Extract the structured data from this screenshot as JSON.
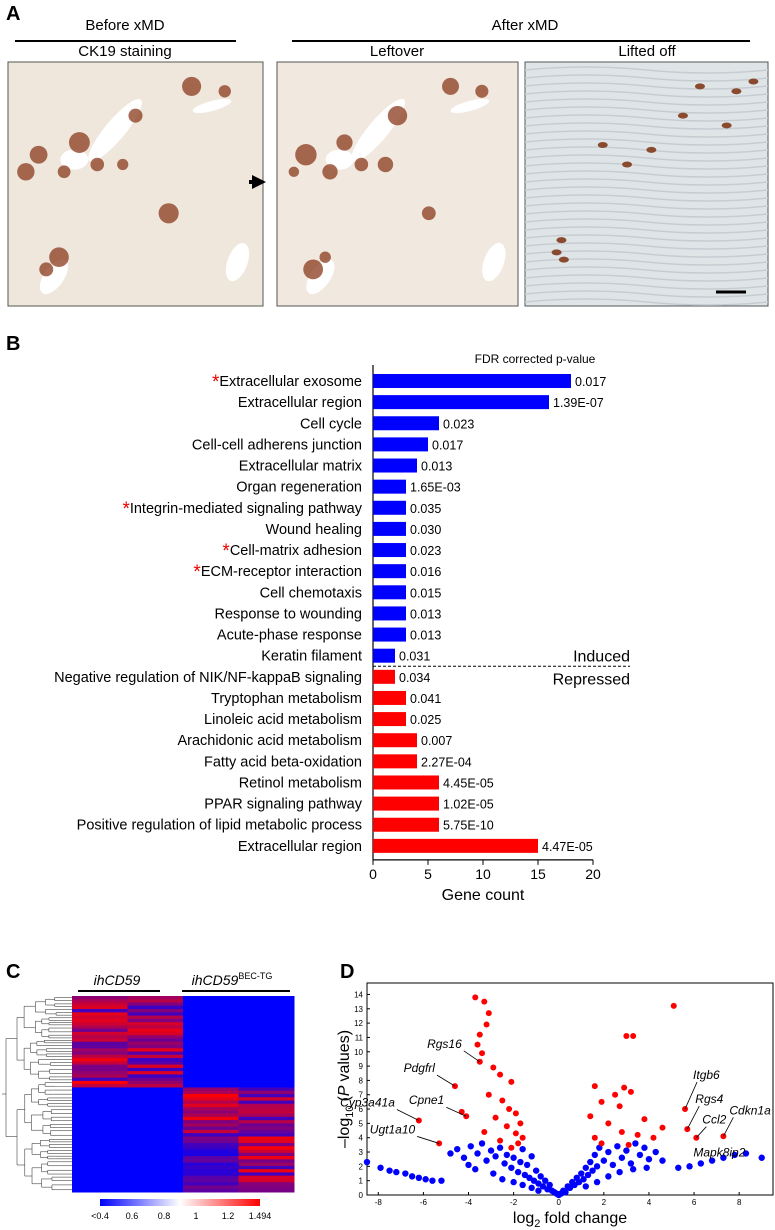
{
  "figure": {
    "panel_a": {
      "label": "A",
      "before": "Before xMD",
      "before_sub": "CK19 staining",
      "after": "After xMD",
      "after_sub1": "Leftover",
      "after_sub2": "Lifted off"
    },
    "panel_c": {
      "label": "C",
      "col1": "ihCD59",
      "col2": [
        "ihCD59",
        "BEC-TG"
      ],
      "colorbar": [
        "<0.4",
        "0.6",
        "0.8",
        "1",
        "1.2",
        "1.494"
      ]
    }
  },
  "chart_data": [
    {
      "type": "bar",
      "orientation": "horizontal",
      "panel_label": "B",
      "categories": [
        "*Extracellular exosome",
        "Extracellular region",
        "Cell cycle",
        "Cell-cell adherens junction",
        "Extracellular matrix",
        "Organ regeneration",
        "*Integrin-mediated signaling pathway",
        "Wound healing",
        "*Cell-matrix adhesion",
        "*ECM-receptor interaction",
        "Cell chemotaxis",
        "Response to wounding",
        "Acute-phase response",
        "Keratin filament",
        "Negative regulation of NIK/NF-kappaB signaling",
        "Tryptophan metabolism",
        "Linoleic acid metabolism",
        "Arachidonic acid metabolism",
        "Fatty acid beta-oxidation",
        "Retinol metabolism",
        "PPAR signaling pathway",
        "Positive regulation of lipid metabolic process",
        "Extracellular region"
      ],
      "series": [
        {
          "name": "Induced",
          "color": "#0000ff",
          "values": [
            18,
            16,
            6,
            5,
            4,
            3,
            3,
            3,
            3,
            3,
            3,
            3,
            3,
            2,
            null,
            null,
            null,
            null,
            null,
            null,
            null,
            null,
            null
          ]
        },
        {
          "name": "Repressed",
          "color": "#ff0000",
          "values": [
            null,
            null,
            null,
            null,
            null,
            null,
            null,
            null,
            null,
            null,
            null,
            null,
            null,
            null,
            2,
            3,
            3,
            4,
            4,
            6,
            6,
            6,
            15
          ]
        }
      ],
      "annotation_title": "FDR corrected p-value",
      "p_values": [
        "0.017",
        "1.39E-07",
        "0.023",
        "0.017",
        "0.013",
        "1.65E-03",
        "0.035",
        "0.030",
        "0.023",
        "0.016",
        "0.015",
        "0.013",
        "0.013",
        "0.031",
        "0.034",
        "0.041",
        "0.025",
        "0.007",
        "2.27E-04",
        "4.45E-05",
        "1.02E-05",
        "5.75E-10",
        "4.47E-05"
      ],
      "xlim": [
        0,
        20
      ],
      "xticks": [
        0,
        5,
        10,
        15,
        20
      ],
      "x_label": "Gene count"
    },
    {
      "type": "scatter",
      "panel_label": "D",
      "series": [
        {
          "color": "#0000ff",
          "x": [
            -8.5,
            -7.9,
            -7.5,
            -7.2,
            -6.8,
            -6.5,
            -6.2,
            -5.9,
            -5.6,
            -5.2,
            -4.8,
            -4.5,
            -4.2,
            -3.9,
            -3.6,
            -3.4,
            -3.2,
            -3.0,
            -2.8,
            -2.6,
            -2.4,
            -2.3,
            -2.1,
            -2.0,
            -1.8,
            -1.7,
            -1.6,
            -1.5,
            -1.4,
            -1.3,
            -1.2,
            -1.1,
            -1.0,
            -0.9,
            -0.8,
            -0.7,
            -0.6,
            -0.5,
            -0.4,
            -0.3,
            -0.2,
            -0.1,
            -3.7,
            -2.9,
            -2.5,
            -2.0,
            -1.6,
            -1.2,
            -0.9,
            -4.0,
            0,
            0.1,
            0.2,
            0.3,
            0.4,
            0.5,
            0.6,
            0.7,
            0.8,
            0.9,
            1.0,
            1.1,
            1.2,
            1.3,
            1.4,
            1.5,
            1.6,
            1.7,
            1.8,
            2.0,
            2.2,
            2.4,
            2.6,
            2.8,
            3.0,
            3.2,
            3.4,
            3.6,
            3.8,
            4.0,
            4.3,
            4.6,
            1.2,
            1.7,
            2.2,
            2.7,
            3.3,
            3.9,
            5.3,
            5.8,
            6.3,
            6.8,
            7.3,
            7.8,
            8.3,
            9.0
          ],
          "values": [
            2.3,
            1.9,
            1.7,
            1.6,
            1.5,
            1.3,
            1.2,
            1.1,
            1.0,
            1.0,
            2.9,
            3.2,
            2.6,
            3.4,
            2.9,
            3.6,
            2.4,
            3.1,
            2.7,
            3.3,
            2.2,
            2.8,
            1.9,
            2.6,
            1.6,
            2.3,
            3.2,
            1.4,
            2.1,
            1.2,
            2.7,
            1.0,
            1.7,
            0.8,
            1.3,
            0.6,
            1.0,
            0.4,
            0.7,
            0.3,
            0.2,
            0.1,
            1.8,
            1.5,
            1.1,
            0.9,
            0.7,
            0.5,
            0.3,
            2.1,
            0,
            0.1,
            0.3,
            0.2,
            0.6,
            0.5,
            0.9,
            0.7,
            1.2,
            0.9,
            1.5,
            1.1,
            1.9,
            1.4,
            2.3,
            1.7,
            2.8,
            2.0,
            3.3,
            2.4,
            3.0,
            2.1,
            3.4,
            2.6,
            3.1,
            2.2,
            3.6,
            2.8,
            3.3,
            2.5,
            3.0,
            2.4,
            0.6,
            0.9,
            1.3,
            1.6,
            1.8,
            1.9,
            1.9,
            2.0,
            2.2,
            2.4,
            2.6,
            2.8,
            2.9,
            2.6
          ]
        },
        {
          "color": "#ff0000",
          "x": [
            -3.7,
            -3.3,
            -3.1,
            -3.2,
            -3.5,
            -3.6,
            -3.4,
            -3.5,
            -2.9,
            -2.6,
            -4.6,
            -2.1,
            -3.1,
            -2.5,
            -4.1,
            -2.2,
            -1.9,
            -2.8,
            -4.3,
            -6.2,
            -1.7,
            -2.3,
            -3.3,
            -1.9,
            -1.6,
            -5.3,
            -2.6,
            -1.8,
            -2.1,
            5.1,
            3.0,
            3.3,
            1.6,
            2.5,
            2.9,
            3.2,
            1.9,
            2.7,
            1.4,
            2.2,
            3.8,
            5.6,
            4.6,
            5.7,
            6.1,
            2.8,
            1.6,
            3.5,
            7.3,
            1.9,
            3.1,
            4.2
          ],
          "values": [
            13.8,
            13.5,
            12.7,
            11.9,
            11.2,
            10.5,
            9.9,
            9.3,
            8.9,
            8.4,
            7.6,
            7.9,
            7.0,
            6.6,
            5.5,
            6.0,
            5.7,
            5.4,
            5.8,
            5.2,
            5.0,
            4.8,
            4.4,
            4.3,
            4.0,
            3.6,
            3.8,
            3.6,
            3.3,
            13.2,
            11.1,
            11.1,
            7.6,
            7.0,
            7.5,
            7.2,
            6.5,
            6.2,
            5.5,
            5.0,
            5.3,
            6.0,
            4.7,
            4.6,
            4.0,
            4.4,
            4.0,
            4.2,
            4.1,
            3.6,
            3.5,
            4.0
          ]
        }
      ],
      "annotations": [
        {
          "text": "Rgs16",
          "x": -3.5,
          "y": 9.3
        },
        {
          "text": "Pdgfrl",
          "x": -4.6,
          "y": 7.6
        },
        {
          "text": "Cpne1",
          "x": -4.1,
          "y": 5.5
        },
        {
          "text": "Cyp3a41a",
          "x": -6.2,
          "y": 5.2
        },
        {
          "text": "Ugt1a10",
          "x": -5.3,
          "y": 3.6
        },
        {
          "text": "Itgb6",
          "x": 5.6,
          "y": 6.0
        },
        {
          "text": "Rgs4",
          "x": 5.7,
          "y": 4.6
        },
        {
          "text": "Ccl2",
          "x": 6.1,
          "y": 4.0
        },
        {
          "text": "Cdkn1a",
          "x": 7.3,
          "y": 4.1
        },
        {
          "text": "Mapk8ip2",
          "x": 7.3,
          "y": 4.1
        }
      ],
      "xlim": [
        -8.5,
        9.5
      ],
      "xticks": [
        -8,
        -6,
        -4,
        -2,
        0,
        2,
        4,
        6,
        8
      ],
      "ylim": [
        0,
        14.8
      ],
      "yticks": [
        0,
        1,
        2,
        3,
        4,
        5,
        6,
        7,
        8,
        9,
        10,
        11,
        12,
        13,
        14
      ],
      "x_label": [
        "log",
        "2",
        "fold change"
      ],
      "y_label": [
        "–log",
        "10",
        "(",
        "P",
        "values)"
      ]
    }
  ]
}
